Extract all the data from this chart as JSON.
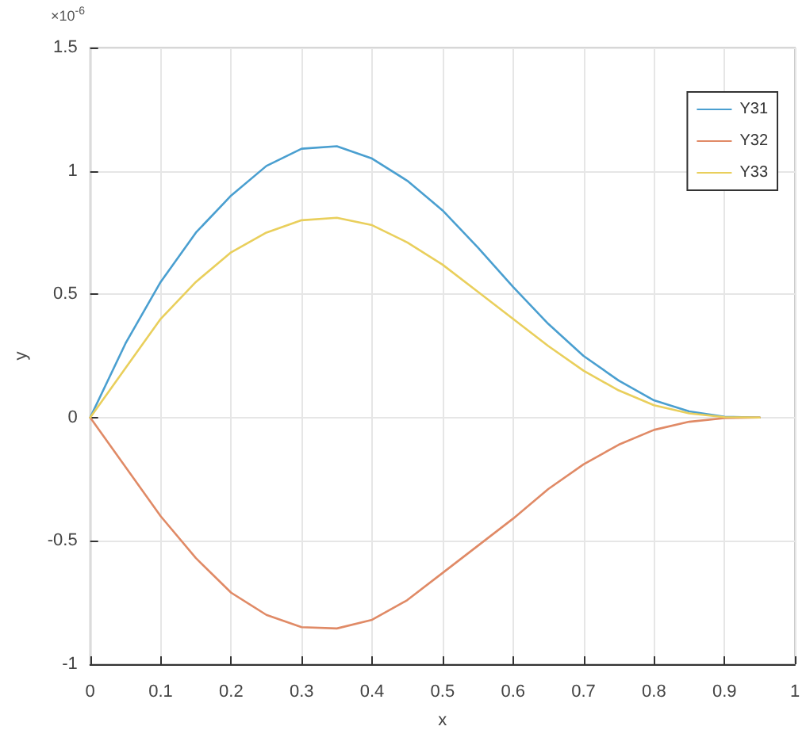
{
  "chart_data": {
    "type": "line",
    "xlabel": "x",
    "ylabel": "y",
    "annotations": [
      "×10$^{-6}$"
    ],
    "x": [
      0,
      0.05,
      0.1,
      0.15,
      0.2,
      0.25,
      0.3,
      0.35,
      0.4,
      0.45,
      0.5,
      0.55,
      0.6,
      0.65,
      0.7,
      0.75,
      0.8,
      0.85,
      0.9,
      0.95
    ],
    "series": [
      {
        "name": "Y31",
        "color": "#4a9fd0",
        "values": [
          0,
          0.3,
          0.55,
          0.75,
          0.9,
          1.02,
          1.09,
          1.1,
          1.05,
          0.96,
          0.84,
          0.69,
          0.53,
          0.38,
          0.25,
          0.15,
          0.07,
          0.025,
          0.003,
          0
        ]
      },
      {
        "name": "Y32",
        "color": "#e08a66",
        "values": [
          0,
          -0.2,
          -0.4,
          -0.57,
          -0.71,
          -0.8,
          -0.85,
          -0.855,
          -0.82,
          -0.74,
          -0.63,
          -0.52,
          -0.41,
          -0.29,
          -0.19,
          -0.11,
          -0.05,
          -0.017,
          -0.002,
          0
        ]
      },
      {
        "name": "Y33",
        "color": "#e9cf5c",
        "values": [
          0,
          0.2,
          0.4,
          0.55,
          0.67,
          0.75,
          0.8,
          0.81,
          0.78,
          0.71,
          0.62,
          0.51,
          0.4,
          0.29,
          0.19,
          0.11,
          0.05,
          0.017,
          0.002,
          0
        ]
      }
    ],
    "xlim": [
      0,
      1
    ],
    "xticks": [
      0,
      0.1,
      0.2,
      0.3,
      0.4,
      0.5,
      0.6,
      0.7,
      0.8,
      0.9,
      1
    ],
    "ylim": [
      -1,
      1.5
    ],
    "yticks": [
      -1,
      -0.5,
      0,
      0.5,
      1,
      1.5
    ],
    "grid": true,
    "legend": "top right",
    "marker": "none",
    "line_style": "solid"
  }
}
